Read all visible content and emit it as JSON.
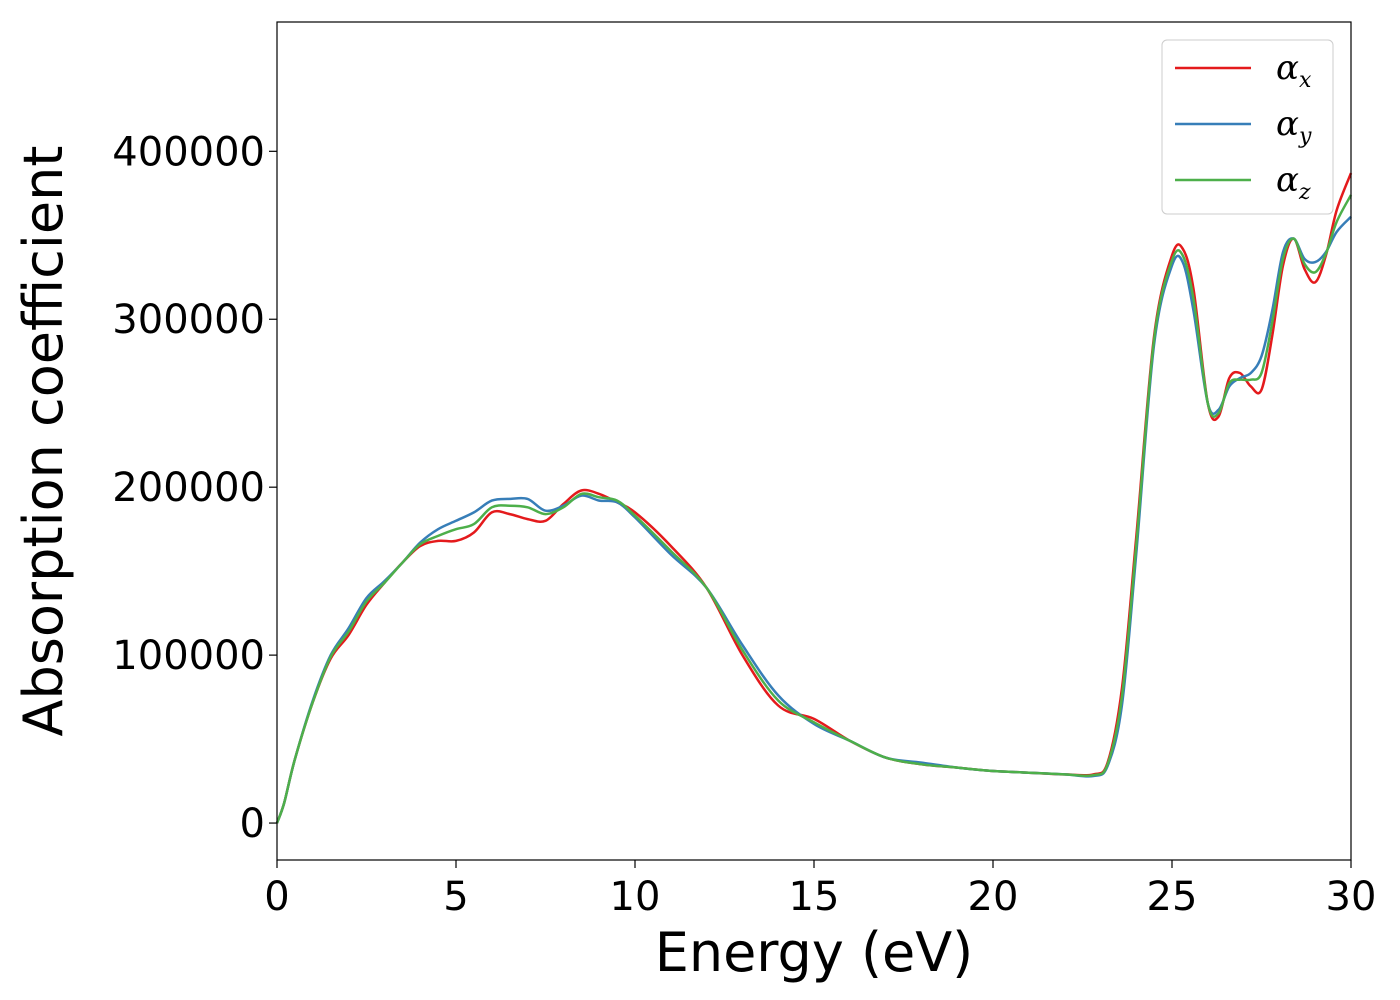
{
  "chart_data": {
    "type": "line",
    "title": "",
    "xlabel": "Energy (eV)",
    "ylabel": "Absorption coefficient",
    "xlim": [
      0,
      30
    ],
    "ylim": [
      -22000,
      477000
    ],
    "xticks": [
      0,
      5,
      10,
      15,
      20,
      25,
      30
    ],
    "xtick_labels": [
      "0",
      "5",
      "10",
      "15",
      "20",
      "25",
      "30"
    ],
    "yticks": [
      0,
      100000,
      200000,
      300000,
      400000
    ],
    "ytick_labels": [
      "0",
      "100000",
      "200000",
      "300000",
      "400000"
    ],
    "grid": false,
    "legend_position": "top-right",
    "series": [
      {
        "name": "α",
        "subscript": "x",
        "color": "#e41a1c",
        "x": [
          0,
          0.2,
          0.5,
          1.0,
          1.5,
          2.0,
          2.5,
          3.0,
          3.5,
          4.0,
          4.5,
          5.0,
          5.5,
          6.0,
          6.5,
          7.0,
          7.5,
          8.0,
          8.5,
          9.0,
          9.5,
          10.0,
          11.0,
          12.0,
          13.0,
          14.0,
          15.0,
          16.0,
          17.0,
          18.0,
          19.0,
          20.0,
          21.0,
          22.0,
          22.8,
          23.2,
          23.6,
          24.0,
          24.5,
          25.0,
          25.3,
          25.6,
          26.0,
          26.3,
          26.6,
          26.9,
          27.2,
          27.5,
          27.8,
          28.1,
          28.4,
          28.7,
          29.0,
          29.3,
          29.6,
          30.0
        ],
        "y": [
          0,
          12000,
          38000,
          72000,
          98000,
          112000,
          130000,
          143000,
          155000,
          165000,
          168000,
          168000,
          173000,
          185000,
          184000,
          181000,
          180000,
          190000,
          198000,
          196000,
          191000,
          185000,
          165000,
          140000,
          100000,
          70000,
          62000,
          49000,
          39000,
          35000,
          33000,
          31000,
          30000,
          29000,
          29000,
          36000,
          80000,
          170000,
          290000,
          338000,
          342000,
          318000,
          250000,
          242000,
          265000,
          268000,
          260000,
          258000,
          290000,
          332000,
          348000,
          330000,
          322000,
          338000,
          365000,
          387000
        ]
      },
      {
        "name": "α",
        "subscript": "y",
        "color": "#377eb8",
        "x": [
          0,
          0.2,
          0.5,
          1.0,
          1.5,
          2.0,
          2.5,
          3.0,
          3.5,
          4.0,
          4.5,
          5.0,
          5.5,
          6.0,
          6.5,
          7.0,
          7.5,
          8.0,
          8.5,
          9.0,
          9.5,
          10.0,
          11.0,
          12.0,
          13.0,
          14.0,
          15.0,
          16.0,
          17.0,
          18.0,
          19.0,
          20.0,
          21.0,
          22.0,
          22.8,
          23.2,
          23.6,
          24.0,
          24.5,
          25.0,
          25.3,
          25.6,
          26.0,
          26.3,
          26.6,
          26.9,
          27.2,
          27.5,
          27.8,
          28.1,
          28.4,
          28.7,
          29.0,
          29.3,
          29.6,
          30.0
        ],
        "y": [
          0,
          12000,
          38000,
          73000,
          100000,
          116000,
          134000,
          144000,
          155000,
          167000,
          175000,
          180000,
          185000,
          192000,
          193000,
          193000,
          186000,
          189000,
          195000,
          192000,
          191000,
          182000,
          160000,
          140000,
          106000,
          76000,
          59000,
          49000,
          39000,
          36000,
          33000,
          31000,
          30000,
          29000,
          28000,
          34000,
          70000,
          160000,
          285000,
          332000,
          334000,
          305000,
          250000,
          246000,
          260000,
          265000,
          268000,
          278000,
          305000,
          340000,
          348000,
          336000,
          334000,
          340000,
          352000,
          361000
        ]
      },
      {
        "name": "α",
        "subscript": "z",
        "color": "#4daf4a",
        "x": [
          0,
          0.2,
          0.5,
          1.0,
          1.5,
          2.0,
          2.5,
          3.0,
          3.5,
          4.0,
          4.5,
          5.0,
          5.5,
          6.0,
          6.5,
          7.0,
          7.5,
          8.0,
          8.5,
          9.0,
          9.5,
          10.0,
          11.0,
          12.0,
          13.0,
          14.0,
          15.0,
          16.0,
          17.0,
          18.0,
          19.0,
          20.0,
          21.0,
          22.0,
          22.8,
          23.2,
          23.6,
          24.0,
          24.5,
          25.0,
          25.3,
          25.6,
          26.0,
          26.3,
          26.6,
          26.9,
          27.2,
          27.5,
          27.8,
          28.1,
          28.4,
          28.7,
          29.0,
          29.3,
          29.6,
          30.0
        ],
        "y": [
          0,
          12000,
          38000,
          72000,
          99000,
          114000,
          132000,
          143000,
          155000,
          166000,
          171000,
          175000,
          178000,
          188000,
          189000,
          188000,
          184000,
          188000,
          196000,
          194000,
          192000,
          183000,
          162000,
          140000,
          103000,
          73000,
          60000,
          49000,
          39000,
          35000,
          33000,
          31000,
          30000,
          29000,
          28500,
          35000,
          75000,
          165000,
          288000,
          335000,
          338000,
          312000,
          250000,
          244000,
          262000,
          264000,
          264000,
          268000,
          298000,
          336000,
          348000,
          333000,
          328000,
          339000,
          358000,
          374000
        ]
      }
    ]
  }
}
